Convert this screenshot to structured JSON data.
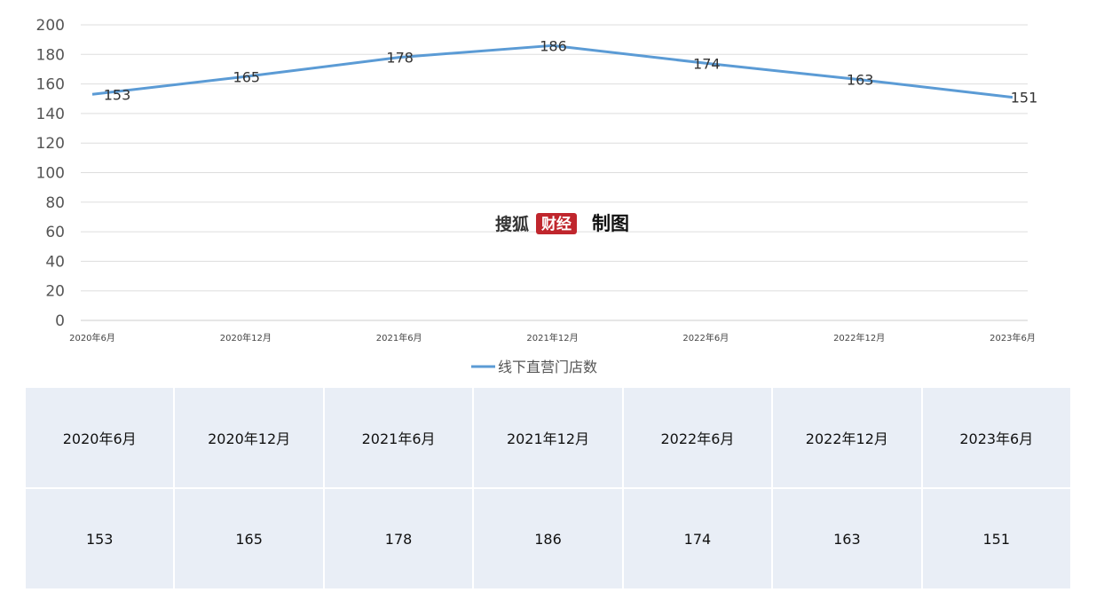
{
  "chart_data": {
    "type": "line",
    "categories": [
      "2020年6月",
      "2020年12月",
      "2021年6月",
      "2021年12月",
      "2022年6月",
      "2022年12月",
      "2023年6月"
    ],
    "series": [
      {
        "name": "线下直营门店数",
        "values": [
          153,
          165,
          178,
          186,
          174,
          163,
          151
        ],
        "color": "#5b9bd5"
      }
    ],
    "ylim": [
      0,
      200
    ],
    "yticks": [
      0,
      20,
      40,
      60,
      80,
      100,
      120,
      140,
      160,
      180,
      200
    ],
    "grid": true,
    "legend_position": "bottom"
  },
  "watermark": {
    "left_text": "搜狐",
    "box_text": "财经",
    "right_text": "制图",
    "box_color": "#c0262d"
  },
  "table": {
    "headers": [
      "2020年6月",
      "2020年12月",
      "2021年6月",
      "2021年12月",
      "2022年6月",
      "2022年12月",
      "2023年6月"
    ],
    "values": [
      "153",
      "165",
      "178",
      "186",
      "174",
      "163",
      "151"
    ]
  }
}
